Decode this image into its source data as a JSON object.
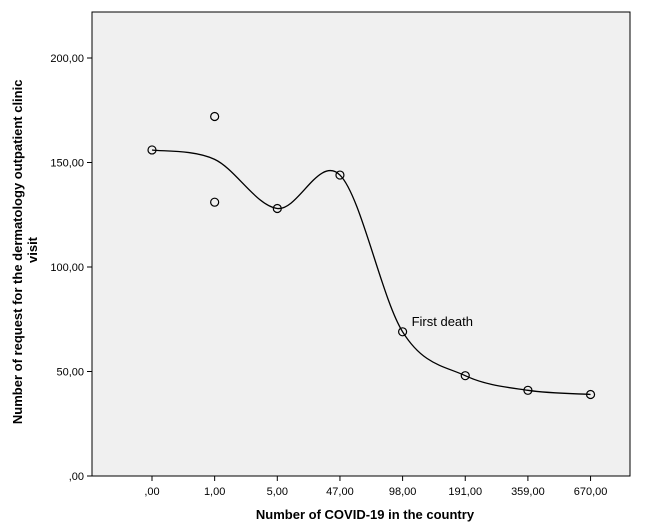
{
  "chart_data": {
    "type": "scatter",
    "title": "",
    "xlabel": "Number of COVID-19 in the country",
    "ylabel": "Number of request for the dermatology outpatient clinic visit",
    "categories": [
      ",00",
      "1,00",
      "5,00",
      "47,00",
      "98,00",
      "191,00",
      "359,00",
      "670,00"
    ],
    "y_ticks": [
      ",00",
      "50,00",
      "100,00",
      "150,00",
      "200,00"
    ],
    "y_tick_values": [
      0,
      50,
      100,
      150,
      200
    ],
    "ylim": [
      0,
      210
    ],
    "points": [
      {
        "x": ",00",
        "y": 156
      },
      {
        "x": "1,00",
        "y": 172
      },
      {
        "x": "1,00",
        "y": 131
      },
      {
        "x": "5,00",
        "y": 128
      },
      {
        "x": "47,00",
        "y": 144
      },
      {
        "x": "98,00",
        "y": 69
      },
      {
        "x": "191,00",
        "y": 48
      },
      {
        "x": "359,00",
        "y": 41
      },
      {
        "x": "670,00",
        "y": 39
      }
    ],
    "fit_line": [
      {
        "x": ",00",
        "y": 156
      },
      {
        "x": "1,00",
        "y": 151.5
      },
      {
        "x": "5,00",
        "y": 128
      },
      {
        "x": "47,00",
        "y": 144
      },
      {
        "x": "98,00",
        "y": 69
      },
      {
        "x": "191,00",
        "y": 48
      },
      {
        "x": "359,00",
        "y": 41
      },
      {
        "x": "670,00",
        "y": 39
      }
    ],
    "annotations": [
      {
        "text": "First death",
        "x": "98,00",
        "y": 69
      }
    ],
    "grid": false,
    "colors": {
      "plot_background": "#f0f0f0",
      "marker_stroke": "#000000",
      "line": "#000000"
    }
  }
}
